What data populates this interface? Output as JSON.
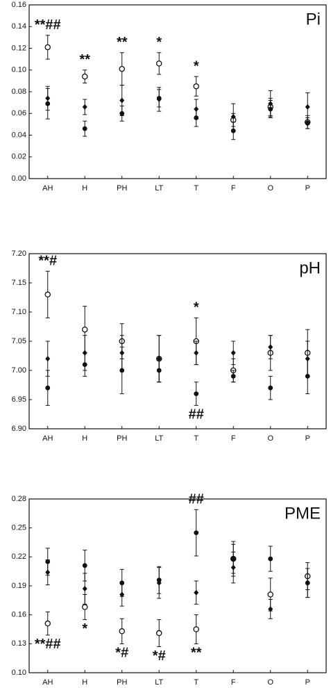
{
  "chart_data": [
    {
      "type": "dot",
      "title": "Pi",
      "categories": [
        "AH",
        "H",
        "PH",
        "LT",
        "T",
        "F",
        "O",
        "P"
      ],
      "series": [
        {
          "marker": "open-circle",
          "color": "#111111",
          "values": [
            0.121,
            0.094,
            0.101,
            0.106,
            0.085,
            0.054,
            0.066,
            0.052
          ],
          "errors": [
            0.011,
            0.006,
            0.015,
            0.01,
            0.009,
            0.006,
            0.008,
            0.006
          ]
        },
        {
          "marker": "filled-circle",
          "color": "#111111",
          "values": [
            0.069,
            0.046,
            0.06,
            0.074,
            0.056,
            0.044,
            0.064,
            0.051
          ],
          "errors": [
            0.014,
            0.007,
            0.007,
            0.008,
            0.008,
            0.008,
            0.008,
            0.005
          ]
        },
        {
          "marker": "diamond",
          "color": "#111111",
          "values": [
            0.074,
            0.066,
            0.072,
            0.073,
            0.064,
            0.057,
            0.069,
            0.066
          ],
          "errors": [
            0.011,
            0.007,
            0.014,
            0.011,
            0.009,
            0.012,
            0.012,
            0.013
          ]
        }
      ],
      "ylim": [
        0,
        0.16
      ],
      "yticks": [
        {
          "value": 0,
          "label": "0.00"
        },
        0.02,
        0.04,
        0.06,
        0.08,
        {
          "value": 0.1,
          "label": "0.10"
        },
        0.12,
        0.14,
        0.16
      ],
      "annotations": [
        {
          "category": "AH",
          "text": "**##",
          "position": "above"
        },
        {
          "category": "H",
          "text": "**",
          "position": "above"
        },
        {
          "category": "PH",
          "text": "**",
          "position": "above"
        },
        {
          "category": "LT",
          "text": "*",
          "position": "above"
        },
        {
          "category": "T",
          "text": "*",
          "position": "above"
        }
      ]
    },
    {
      "type": "dot",
      "title": "pH",
      "categories": [
        "AH",
        "H",
        "PH",
        "LT",
        "T",
        "F",
        "O",
        "P"
      ],
      "series": [
        {
          "marker": "open-circle",
          "color": "#111111",
          "values": [
            7.13,
            7.07,
            7.05,
            7.02,
            7.05,
            7.0,
            7.03,
            7.03
          ],
          "errors": [
            0.04,
            0.04,
            0.03,
            0.04,
            0.04,
            0.02,
            0.03,
            0.04
          ]
        },
        {
          "marker": "filled-circle",
          "color": "#111111",
          "values": [
            6.97,
            7.01,
            7.0,
            7.0,
            6.96,
            6.99,
            6.97,
            6.99
          ],
          "errors": [
            0.03,
            0.02,
            0.04,
            0.02,
            0.02,
            0.01,
            0.02,
            0.03
          ]
        },
        {
          "marker": "diamond",
          "color": "#111111",
          "values": [
            7.02,
            7.03,
            7.03,
            7.02,
            7.03,
            7.03,
            7.04,
            7.02
          ],
          "errors": [
            0.03,
            0.03,
            0.03,
            0.04,
            0.02,
            0.02,
            0.02,
            0.03
          ]
        }
      ],
      "ylim": [
        6.9,
        7.2
      ],
      "yticks": [
        {
          "value": 6.9,
          "label": "6.90"
        },
        6.95,
        {
          "value": 7,
          "label": "7.00"
        },
        7.05,
        {
          "value": 7.1,
          "label": "7.10"
        },
        7.15,
        {
          "value": 7.2,
          "label": "7.20"
        }
      ],
      "annotations": [
        {
          "category": "AH",
          "text": "**#",
          "position": "above"
        },
        {
          "category": "T",
          "text": "*",
          "position": "above"
        },
        {
          "category": "T",
          "text": "##",
          "position": "below"
        }
      ]
    },
    {
      "type": "dot",
      "title": "PME",
      "categories": [
        "AH",
        "H",
        "PH",
        "LT",
        "T",
        "F",
        "O",
        "P"
      ],
      "series": [
        {
          "marker": "open-circle",
          "color": "#111111",
          "values": [
            0.151,
            0.168,
            0.143,
            0.141,
            0.145,
            0.218,
            0.181,
            0.2
          ],
          "errors": [
            0.012,
            0.013,
            0.013,
            0.014,
            0.015,
            0.015,
            0.017,
            0.014
          ]
        },
        {
          "marker": "filled-circle",
          "color": "#111111",
          "values": [
            0.215,
            0.211,
            0.193,
            0.196,
            0.245,
            0.218,
            0.218,
            0.193
          ],
          "errors": [
            0.014,
            0.016,
            0.014,
            0.014,
            0.024,
            0.018,
            0.013,
            0.015
          ]
        },
        {
          "marker": "diamond",
          "color": "#111111",
          "values": [
            0.204,
            0.187,
            0.181,
            0.193,
            0.183,
            0.209,
            0.166,
            0.193
          ],
          "errors": [
            0.013,
            0.016,
            0.012,
            0.016,
            0.012,
            0.016,
            0.01,
            0.015
          ]
        }
      ],
      "ylim": [
        0.1,
        0.28
      ],
      "yticks": [
        {
          "value": 0.1,
          "label": "0.10"
        },
        0.13,
        0.16,
        0.19,
        0.22,
        0.25,
        0.28
      ],
      "annotations": [
        {
          "category": "AH",
          "text": "**##",
          "position": "below"
        },
        {
          "category": "H",
          "text": "*",
          "position": "below"
        },
        {
          "category": "PH",
          "text": "*#",
          "position": "below"
        },
        {
          "category": "LT",
          "text": "*#",
          "position": "below"
        },
        {
          "category": "T",
          "text": "**",
          "position": "below"
        },
        {
          "category": "T",
          "text": "##",
          "position": "above"
        }
      ]
    }
  ]
}
